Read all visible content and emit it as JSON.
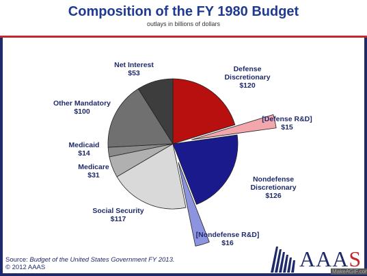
{
  "header": {
    "title": "Composition of the FY 1980 Budget",
    "subtitle": "outlays in billions of dollars"
  },
  "chart_data": {
    "type": "pie",
    "title": "Composition of the FY 1980 Budget",
    "subtitle": "outlays in billions of dollars",
    "unit": "billions of dollars",
    "slices": [
      {
        "name": "Defense Discretionary",
        "value": 120,
        "label": "$120",
        "color": "#b80f0f",
        "exploded": false
      },
      {
        "name": "[Defense R&D]",
        "value": 15,
        "label": "$15",
        "color": "#f4a6ad",
        "exploded": true
      },
      {
        "name": "Nondefense Discretionary",
        "value": 126,
        "label": "$126",
        "color": "#1a1a8c",
        "exploded": false
      },
      {
        "name": "[Nondefense R&D]",
        "value": 16,
        "label": "$16",
        "color": "#8c94e0",
        "exploded": true
      },
      {
        "name": "Social Security",
        "value": 117,
        "label": "$117",
        "color": "#d9d9d9",
        "exploded": false
      },
      {
        "name": "Medicare",
        "value": 31,
        "label": "$31",
        "color": "#b0b0b0",
        "exploded": false
      },
      {
        "name": "Medicaid",
        "value": 14,
        "label": "$14",
        "color": "#8a8a8a",
        "exploded": false
      },
      {
        "name": "Other Mandatory",
        "value": 100,
        "label": "$100",
        "color": "#707070",
        "exploded": false
      },
      {
        "name": "Net Interest",
        "value": 53,
        "label": "$53",
        "color": "#3d3d3d",
        "exploded": false
      }
    ]
  },
  "source": {
    "prefix": "Source: ",
    "title": "Budget of the United States Government FY 2013.",
    "copyright": "© 2012 AAAS"
  },
  "logo": {
    "text_main": "AAA",
    "text_last": "S"
  },
  "watermark": "MakeAGIF.com"
}
